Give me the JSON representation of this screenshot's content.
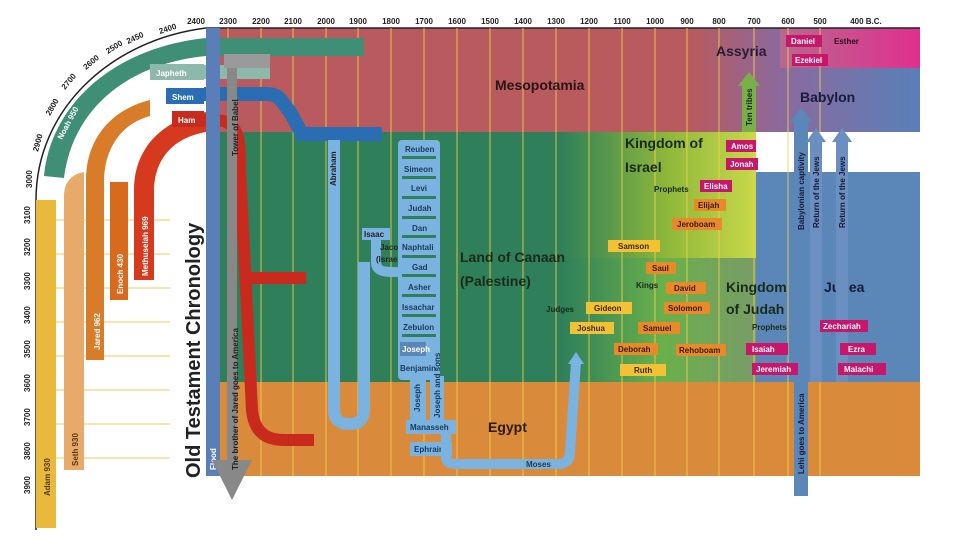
{
  "title": "Old Testament Chronology",
  "years_top": [
    "2400",
    "2300",
    "2200",
    "2100",
    "2000",
    "1900",
    "1800",
    "1700",
    "1600",
    "1500",
    "1400",
    "1300",
    "1200",
    "1100",
    "1000",
    "900",
    "800",
    "700",
    "600",
    "500",
    "400 B.C."
  ],
  "years_arc": [
    "2400",
    "2450",
    "2500",
    "2600",
    "2700",
    "2800",
    "2900",
    "3000"
  ],
  "years_left": [
    "3100",
    "3200",
    "3300",
    "3400",
    "3500",
    "3600",
    "3700",
    "3800",
    "3900"
  ],
  "regions": {
    "mesopotamia": "Mesopotamia",
    "assyria": "Assyria",
    "babylon": "Babylon",
    "israel_1": "Kingdom of",
    "israel_2": "Israel",
    "canaan_1": "Land of Canaan",
    "canaan_2": "(Palestine)",
    "judah_1": "Kingdom",
    "judah_2": "of Judah",
    "judea": "Judea",
    "egypt": "Egypt"
  },
  "patriarchs": {
    "adam": "Adam 930",
    "seth": "Seth 930",
    "jared": "Jared 962",
    "enoch": "Enoch 430",
    "methuselah": "Methuselah 969",
    "noah": "Noah 950",
    "japheth": "Japheth",
    "shem": "Shem",
    "ham": "Ham"
  },
  "vertical_labels": {
    "flood": "Flood",
    "babel": "Tower of Babel",
    "jared_america": "The brother of Jared goes to America",
    "abraham": "Abraham",
    "joseph": "Joseph",
    "joseph_sons": "Joseph and sons",
    "ten_tribes": "Ten tribes",
    "captivity": "Babylonian captivity",
    "return1": "Return of the Jews",
    "return2": "Return of the Jews",
    "lehi": "Lehi goes to America"
  },
  "tribes": {
    "reuben": "Reuben",
    "simeon": "Simeon",
    "levi": "Levi",
    "judah": "Judah",
    "dan": "Dan",
    "naphtali": "Naphtali",
    "gad": "Gad",
    "asher": "Asher",
    "issachar": "Issachar",
    "zebulon": "Zebulon",
    "joseph": "Joseph",
    "benjamin": "Benjamin",
    "manasseh": "Manasseh",
    "ephraim": "Ephraim"
  },
  "people": {
    "isaac": "Isaac",
    "jacob_1": "Jacob",
    "jacob_2": "(Israel)",
    "moses": "Moses",
    "judges_label": "Judges",
    "kings_label": "Kings",
    "prophets_label": "Prophets",
    "prophets_label_2": "Prophets",
    "samson": "Samson",
    "saul": "Saul",
    "david": "David",
    "solomon": "Solomon",
    "gideon": "Gideon",
    "joshua": "Joshua",
    "samuel": "Samuel",
    "deborah": "Deborah",
    "ruth": "Ruth",
    "rehoboam": "Rehoboam",
    "jeroboam": "Jeroboam",
    "elisha": "Elisha",
    "elijah": "Elijah",
    "amos": "Amos",
    "jonah": "Jonah",
    "isaiah": "Isaiah",
    "jeremiah": "Jeremiah",
    "zechariah": "Zechariah",
    "ezra": "Ezra",
    "malachi": "Malachi",
    "daniel": "Daniel",
    "ezekiel": "Ezekiel",
    "esther": "Esther"
  },
  "colors": {
    "mesopotamia": "#b85a5e",
    "canaan": "#2e7f5a",
    "egypt": "#d98a3a",
    "judea": "#5a87b8",
    "babylon": "#cf3e92",
    "adam": "#e8b93a",
    "seth": "#e8aa6a",
    "jared": "#d97c2a",
    "enoch": "#d86a1e",
    "methuselah": "#d63a1e",
    "noah": "#3f8f76",
    "japheth": "#8fb8ac",
    "shem": "#2b6db3",
    "ham": "#c82a1e",
    "tribe": "#7bb3e0",
    "name_yellow": "#f2c234",
    "name_orange": "#e98a28",
    "name_pink": "#c8166a"
  }
}
